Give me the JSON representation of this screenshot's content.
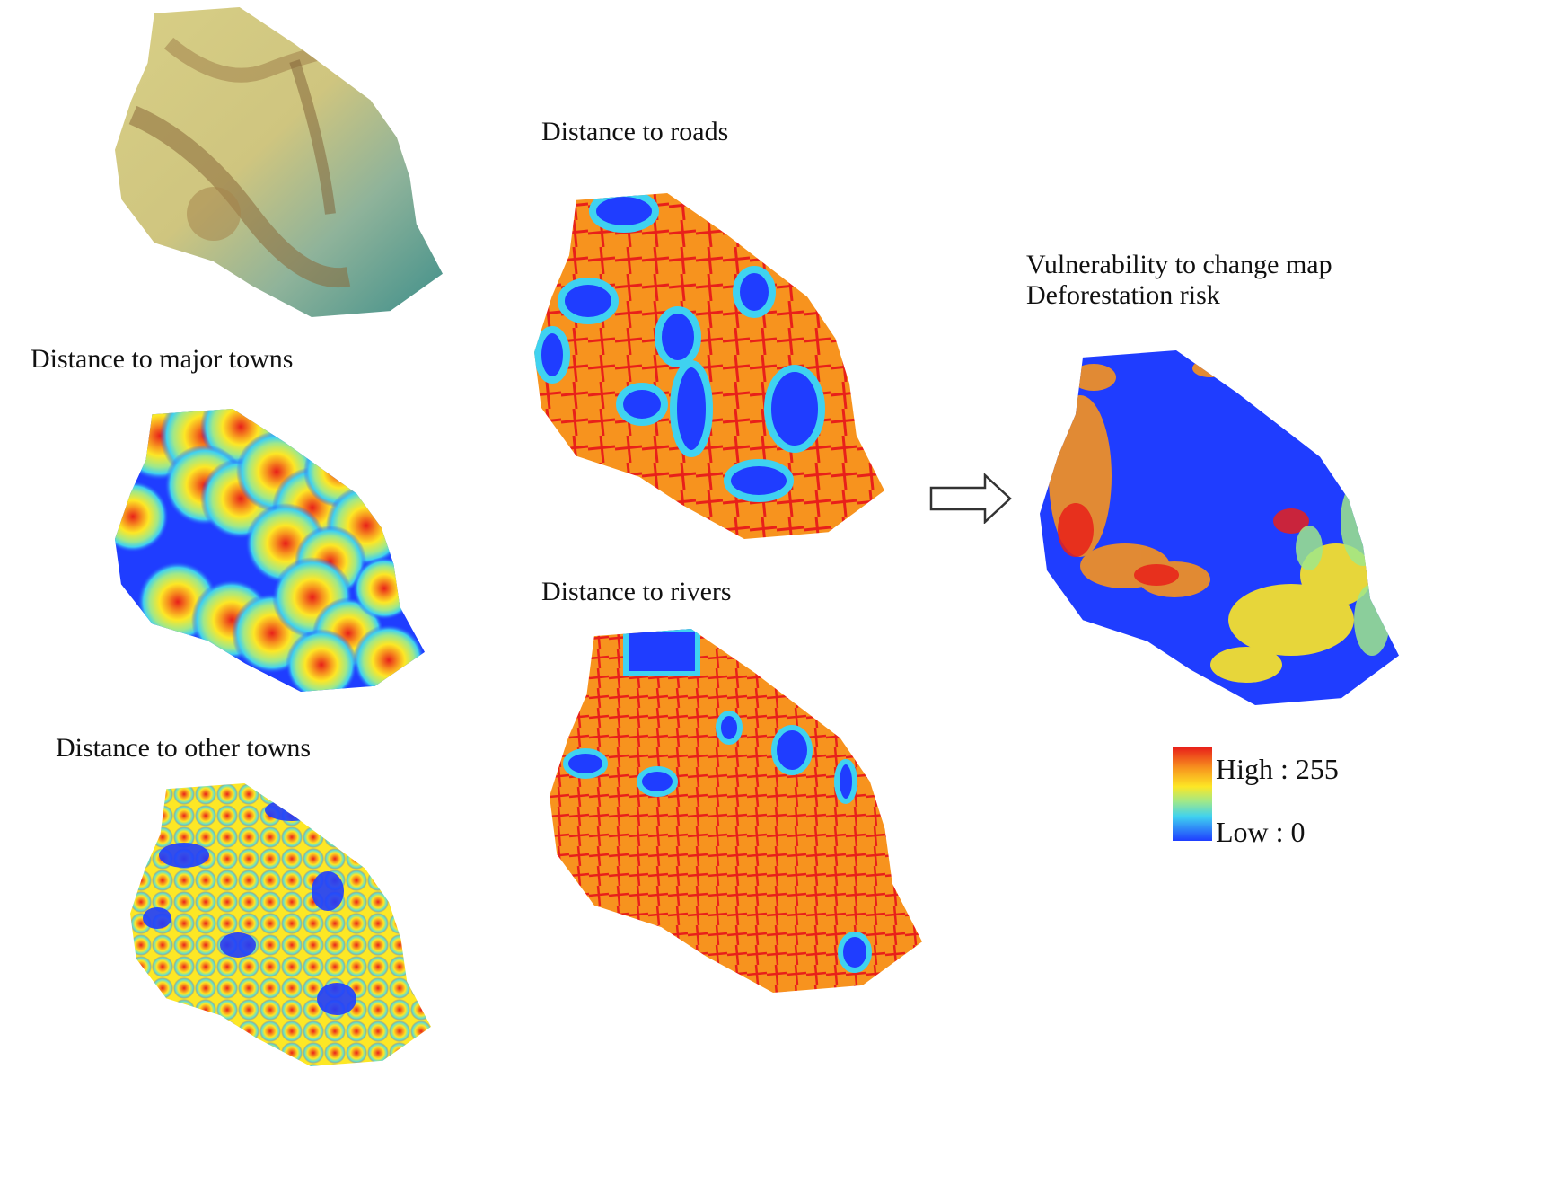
{
  "panels": {
    "elevation": {
      "label": ""
    },
    "major_towns": {
      "label": "Distance to major towns"
    },
    "other_towns": {
      "label": "Distance to other towns"
    },
    "roads": {
      "label": "Distance to roads"
    },
    "rivers": {
      "label": "Distance to rivers"
    },
    "vulnerability": {
      "title_line1": "Vulnerability to change map",
      "title_line2": "Deforestation risk"
    }
  },
  "legend": {
    "high": "High : 255",
    "low": "Low : 0"
  },
  "colors": {
    "high": "#e8201a",
    "mid": "#fde725",
    "low_mid": "#3fd2f0",
    "low": "#1f3dff",
    "elev_low": "#3f8f8a",
    "elev_mid": "#d8d08a",
    "elev_high": "#8a6a3a"
  },
  "arrow": {
    "icon": "right-arrow-icon"
  }
}
